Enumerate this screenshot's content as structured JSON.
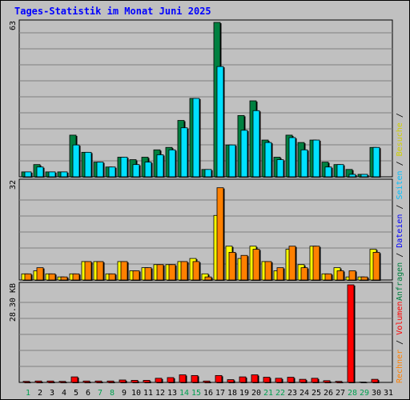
{
  "title": "Tages-Statistik im Monat Juni 2025",
  "colors": {
    "background": "#c0c0c0",
    "hits": "#008040",
    "files": "#00e0ff",
    "pages": "#00c0ff",
    "visits": "#ffff00",
    "sites": "#ff8000",
    "kbytes": "#ff0000",
    "weekend_day_label": "#00a050",
    "weekday_label": "#000000",
    "title": "#0000ff"
  },
  "right_legend": {
    "top": [
      {
        "text": "Anfragen",
        "color": "#008040"
      },
      {
        "text": " / ",
        "color": "#000000"
      },
      {
        "text": "Dateien",
        "color": "#0000ff"
      },
      {
        "text": " / ",
        "color": "#000000"
      },
      {
        "text": "Seiten",
        "color": "#00c0ff"
      },
      {
        "text": " / ",
        "color": "#000000"
      },
      {
        "text": "Besuche",
        "color": "#d0d000"
      },
      {
        "text": " / ",
        "color": "#000000"
      }
    ],
    "bottom": [
      {
        "text": "Rechner",
        "color": "#ff8000"
      },
      {
        "text": " / ",
        "color": "#000000"
      },
      {
        "text": "Volumen",
        "color": "#ff0000"
      }
    ]
  },
  "chart_data": {
    "type": "bar",
    "title": "Tages-Statistik im Monat Juni 2025",
    "categories": [
      "1",
      "2",
      "3",
      "4",
      "5",
      "6",
      "7",
      "8",
      "9",
      "10",
      "11",
      "12",
      "13",
      "14",
      "15",
      "16",
      "17",
      "18",
      "19",
      "20",
      "21",
      "22",
      "23",
      "24",
      "25",
      "26",
      "27",
      "28",
      "29",
      "30",
      "31"
    ],
    "weekend_days": [
      "1",
      "7",
      "8",
      "14",
      "15",
      "21",
      "22",
      "28",
      "29"
    ],
    "panels": [
      {
        "name": "top",
        "ymax": 63,
        "ymax_label": "63",
        "grid": true,
        "series": [
          {
            "name": "Anfragen",
            "values": [
              2,
              5,
              2,
              2,
              17,
              10,
              6,
              4,
              8,
              7,
              8,
              11,
              12,
              23,
              32,
              3,
              63,
              13,
              25,
              31,
              15,
              8,
              17,
              14,
              15,
              6,
              5,
              3,
              1,
              12,
              0
            ]
          },
          {
            "name": "Dateien",
            "values": [
              2,
              4,
              2,
              2,
              13,
              10,
              6,
              4,
              8,
              5,
              6,
              9,
              11,
              20,
              32,
              3,
              45,
              13,
              19,
              27,
              14,
              7,
              16,
              11,
              15,
              4,
              5,
              1,
              1,
              12,
              0
            ]
          },
          {
            "name": "Seiten",
            "values": [
              2,
              4,
              2,
              2,
              13,
              10,
              6,
              4,
              8,
              5,
              6,
              9,
              11,
              20,
              32,
              3,
              45,
              13,
              19,
              27,
              14,
              7,
              16,
              11,
              15,
              4,
              5,
              1,
              1,
              12,
              0
            ]
          }
        ]
      },
      {
        "name": "middle",
        "ymax": 32,
        "ymax_label": "32",
        "grid": true,
        "series": [
          {
            "name": "Besuche",
            "values": [
              2,
              3,
              2,
              1,
              2,
              6,
              6,
              2,
              6,
              3,
              4,
              5,
              5,
              6,
              7,
              2,
              21,
              11,
              7,
              11,
              6,
              3,
              10,
              5,
              11,
              2,
              4,
              1,
              1,
              10,
              0
            ]
          },
          {
            "name": "Rechner",
            "values": [
              2,
              4,
              2,
              1,
              2,
              6,
              6,
              2,
              6,
              3,
              4,
              5,
              5,
              6,
              6,
              1,
              30,
              9,
              8,
              10,
              6,
              4,
              11,
              4,
              11,
              2,
              3,
              3,
              1,
              9,
              0
            ]
          }
        ]
      },
      {
        "name": "bottom",
        "ymax": 28.3,
        "ymax_label": "28.30 KB",
        "grid": true,
        "series": [
          {
            "name": "Volumen",
            "values": [
              0.3,
              0.4,
              0.4,
              0.3,
              1.6,
              0.4,
              0.4,
              0.4,
              0.7,
              0.6,
              0.6,
              1.2,
              1.4,
              2.2,
              2.0,
              0.4,
              2.0,
              0.8,
              1.6,
              2.2,
              1.5,
              1.2,
              1.5,
              0.9,
              1.2,
              0.5,
              0.3,
              28.3,
              0.1,
              0.9,
              0
            ]
          }
        ]
      }
    ]
  }
}
